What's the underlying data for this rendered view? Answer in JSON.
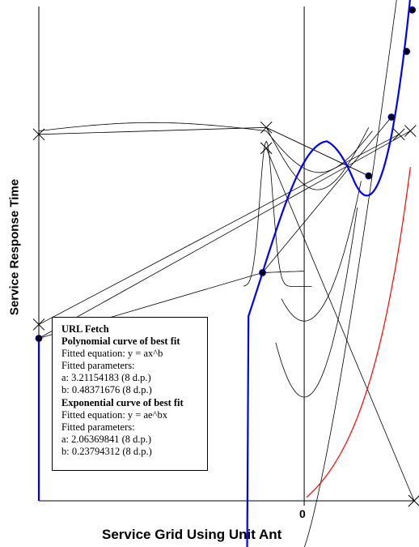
{
  "chart_data": {
    "type": "line",
    "title": "",
    "xlabel": "Service Grid Using Unit Ant",
    "ylabel": "Service Response Time",
    "x_tick_labels": [
      "0"
    ],
    "grid": false,
    "legend_placement": "bottom-left",
    "legend": {
      "heading": "URL Fetch",
      "poly_title": "Polynomial curve of best fit",
      "poly_eq": "Fitted equation:  y = ax^b",
      "poly_params": "Fitted parameters:",
      "poly_a": "a:  3.21154183 (8 d.p.)",
      "poly_b": "b:  0.48371676 (8 d.p.)",
      "exp_title": "Exponential curve of best fit",
      "exp_eq": "Fitted equation:  y = ae^bx",
      "exp_params": "Fitted parameters:",
      "exp_a": "a:  2.06369841 (8 d.p.)",
      "exp_b": "b:  0.23794312 (8 d.p.)"
    },
    "colors": {
      "fit": "#0000ff",
      "exp": "#ff0000",
      "aux": "#000000"
    },
    "points": [
      {
        "x": -7.0,
        "y": 2.55
      },
      {
        "x": -1.1,
        "y": 3.5
      },
      {
        "x": 1.7,
        "y": 4.9
      },
      {
        "x": 2.3,
        "y": 5.75
      },
      {
        "x": 2.7,
        "y": 6.7
      },
      {
        "x": 2.85,
        "y": 7.3
      }
    ],
    "markers": [
      {
        "x": -7.0,
        "y": 5.5
      },
      {
        "x": -7.0,
        "y": 2.75
      },
      {
        "x": -1.0,
        "y": 5.6
      },
      {
        "x": -1.0,
        "y": 5.3
      },
      {
        "x": 2.5,
        "y": 5.5
      },
      {
        "x": 2.8,
        "y": 5.55
      },
      {
        "x": 2.9,
        "y": 0.2
      }
    ],
    "xlim": [
      -7.0,
      2.9
    ],
    "ylim": [
      0.2,
      7.35
    ]
  }
}
